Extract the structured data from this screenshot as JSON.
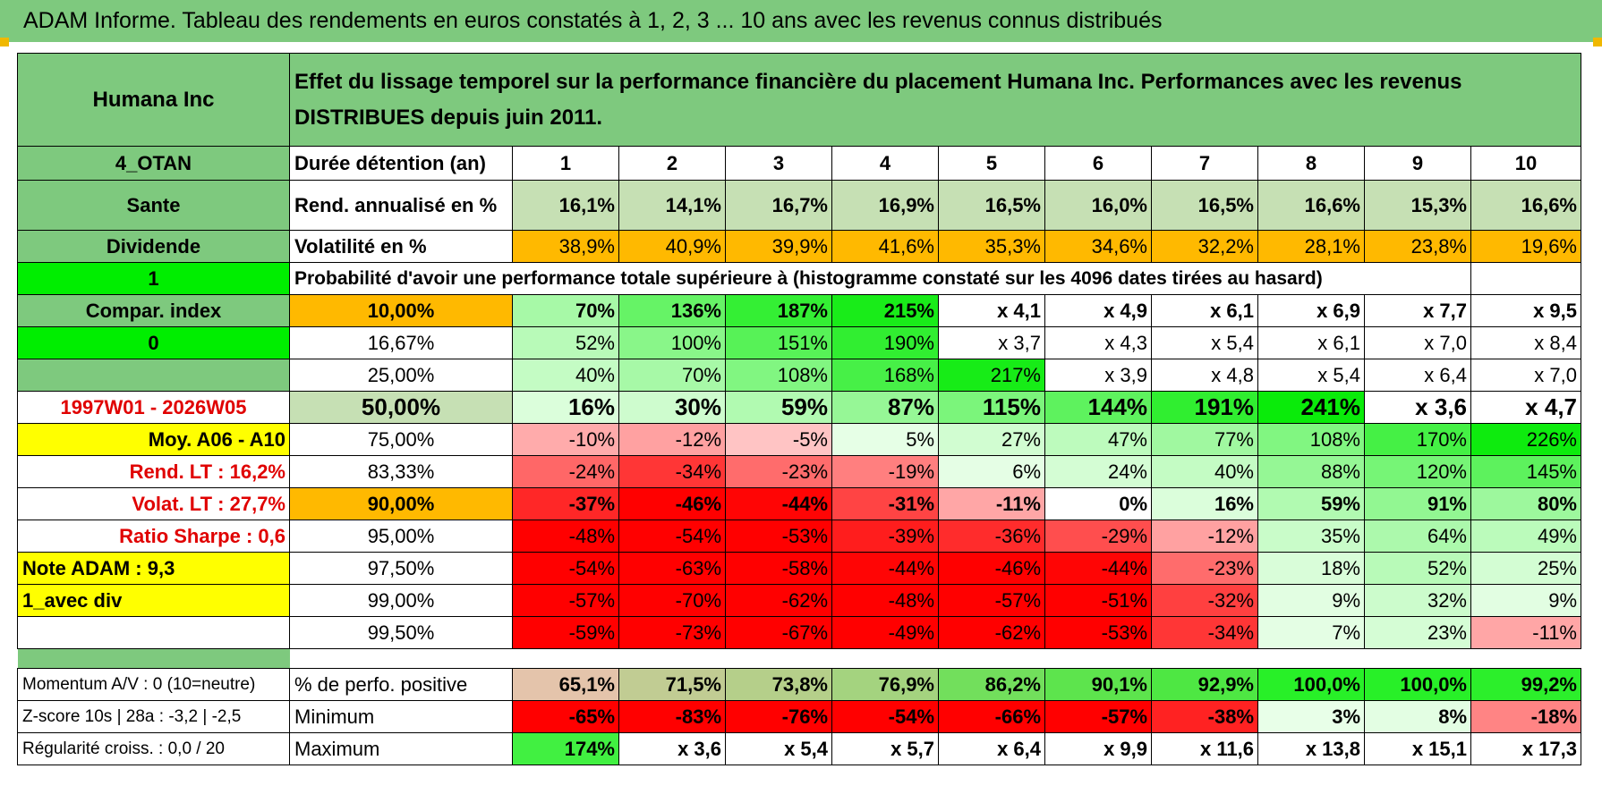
{
  "title": "ADAM Informe. Tableau des rendements en euros constatés à 1, 2, 3 ... 10 ans avec les revenus connus distribués",
  "header": {
    "company": "Humana Inc",
    "description": "Effet du lissage temporel sur la performance financière du placement Humana Inc. Performances avec les revenus DISTRIBUES depuis juin 2011."
  },
  "left": {
    "otan": "4_OTAN",
    "sector": "Sante",
    "dividend": "Dividende",
    "one": "1",
    "compar": "Compar. index",
    "zero": "0",
    "blank": "",
    "period": "1997W01 - 2026W05",
    "moy": "Moy. A06 - A10",
    "rend_lt_label": "Rend. LT :",
    "rend_lt_value": "16,2%",
    "volat_lt_label": "Volat. LT :",
    "volat_lt_value": "27,7%",
    "sharpe_label": "Ratio Sharpe :",
    "sharpe_value": "0,6",
    "note": "Note ADAM : 9,3",
    "avec_div": "1_avec div",
    "momentum": "Momentum A/V : 0 (10=neutre)",
    "zscore": "Z-score 10s | 28a : -3,2 | -2,5",
    "regularite": "Régularité croiss. : 0,0 / 20"
  },
  "rows": {
    "duree_label": "Durée détention (an)",
    "years": [
      "1",
      "2",
      "3",
      "4",
      "5",
      "6",
      "7",
      "8",
      "9",
      "10"
    ],
    "rend_label": "Rend. annualisé en %",
    "rend": [
      "16,1%",
      "14,1%",
      "16,7%",
      "16,9%",
      "16,5%",
      "16,0%",
      "16,5%",
      "16,6%",
      "15,3%",
      "16,6%"
    ],
    "vol_label": "Volatilité en %",
    "vol": [
      "38,9%",
      "40,9%",
      "39,9%",
      "41,6%",
      "35,3%",
      "34,6%",
      "32,2%",
      "28,1%",
      "23,8%",
      "19,6%"
    ],
    "prob_label": "Probabilité d'avoir une performance totale supérieure à (histogramme constaté sur les 4096 dates tirées au hasard)"
  },
  "prob_rows": [
    {
      "pct": "10,00%",
      "values": [
        "70%",
        "136%",
        "187%",
        "215%",
        "x 4,1",
        "x 4,9",
        "x 6,1",
        "x 6,9",
        "x 7,7",
        "x 9,5"
      ]
    },
    {
      "pct": "16,67%",
      "values": [
        "52%",
        "100%",
        "151%",
        "190%",
        "x 3,7",
        "x 4,3",
        "x 5,4",
        "x 6,1",
        "x 7,0",
        "x 8,4"
      ]
    },
    {
      "pct": "25,00%",
      "values": [
        "40%",
        "70%",
        "108%",
        "168%",
        "217%",
        "x 3,9",
        "x 4,8",
        "x 5,4",
        "x 6,4",
        "x 7,0"
      ]
    },
    {
      "pct": "50,00%",
      "values": [
        "16%",
        "30%",
        "59%",
        "87%",
        "115%",
        "144%",
        "191%",
        "241%",
        "x 3,6",
        "x 4,7"
      ]
    },
    {
      "pct": "75,00%",
      "values": [
        "-10%",
        "-12%",
        "-5%",
        "5%",
        "27%",
        "47%",
        "77%",
        "108%",
        "170%",
        "226%"
      ]
    },
    {
      "pct": "83,33%",
      "values": [
        "-24%",
        "-34%",
        "-23%",
        "-19%",
        "6%",
        "24%",
        "40%",
        "88%",
        "120%",
        "145%"
      ]
    },
    {
      "pct": "90,00%",
      "values": [
        "-37%",
        "-46%",
        "-44%",
        "-31%",
        "-11%",
        "0%",
        "16%",
        "59%",
        "91%",
        "80%"
      ]
    },
    {
      "pct": "95,00%",
      "values": [
        "-48%",
        "-54%",
        "-53%",
        "-39%",
        "-36%",
        "-29%",
        "-12%",
        "35%",
        "64%",
        "49%"
      ]
    },
    {
      "pct": "97,50%",
      "values": [
        "-54%",
        "-63%",
        "-58%",
        "-44%",
        "-46%",
        "-44%",
        "-23%",
        "18%",
        "52%",
        "25%"
      ]
    },
    {
      "pct": "99,00%",
      "values": [
        "-57%",
        "-70%",
        "-62%",
        "-48%",
        "-57%",
        "-51%",
        "-32%",
        "9%",
        "32%",
        "9%"
      ]
    },
    {
      "pct": "99,50%",
      "values": [
        "-59%",
        "-73%",
        "-67%",
        "-49%",
        "-62%",
        "-53%",
        "-34%",
        "7%",
        "23%",
        "-11%"
      ]
    }
  ],
  "stats": {
    "pos_label": "% de perfo. positive",
    "pos": [
      "65,1%",
      "71,5%",
      "73,8%",
      "76,9%",
      "86,2%",
      "90,1%",
      "92,9%",
      "100,0%",
      "100,0%",
      "99,2%"
    ],
    "min_label": "Minimum",
    "min": [
      "-65%",
      "-83%",
      "-76%",
      "-54%",
      "-66%",
      "-57%",
      "-38%",
      "3%",
      "8%",
      "-18%"
    ],
    "max_label": "Maximum",
    "max": [
      "174%",
      "x 3,6",
      "x 5,4",
      "x 5,7",
      "x 6,4",
      "x 9,9",
      "x 11,6",
      "x 13,8",
      "x 15,1",
      "x 17,3"
    ]
  },
  "colors": {
    "header_green": "#7ec97e",
    "light_green": "#c6e0b4",
    "orange": "#ffb900",
    "yellow": "#ffff00",
    "red_text": "#e00000",
    "bright_green": "#00ee00"
  }
}
